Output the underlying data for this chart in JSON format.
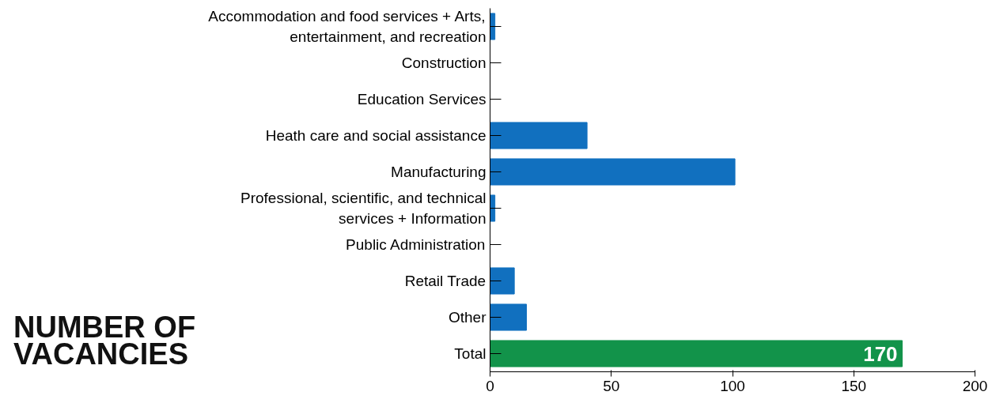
{
  "chart_data": {
    "type": "bar",
    "orientation": "horizontal",
    "title": "NUMBER OF VACANCIES",
    "categories": [
      "Accommodation and food services + Arts, entertainment, and recreation",
      "Construction",
      "Education Services",
      "Heath care and social assistance",
      "Manufacturing",
      "Professional, scientific, and technical services + Information",
      "Public Administration",
      "Retail Trade",
      "Other",
      "Total"
    ],
    "values": [
      2,
      0,
      0,
      40,
      101,
      2,
      0,
      10,
      15,
      170
    ],
    "colors": [
      "#1170bf",
      "#1170bf",
      "#1170bf",
      "#1170bf",
      "#1170bf",
      "#1170bf",
      "#1170bf",
      "#1170bf",
      "#1170bf",
      "#12934a"
    ],
    "value_labels": [
      null,
      null,
      null,
      null,
      null,
      null,
      null,
      null,
      null,
      "170"
    ],
    "xlim": [
      0,
      200
    ],
    "xticks": [
      0,
      50,
      100,
      150,
      200
    ],
    "grid": false
  }
}
